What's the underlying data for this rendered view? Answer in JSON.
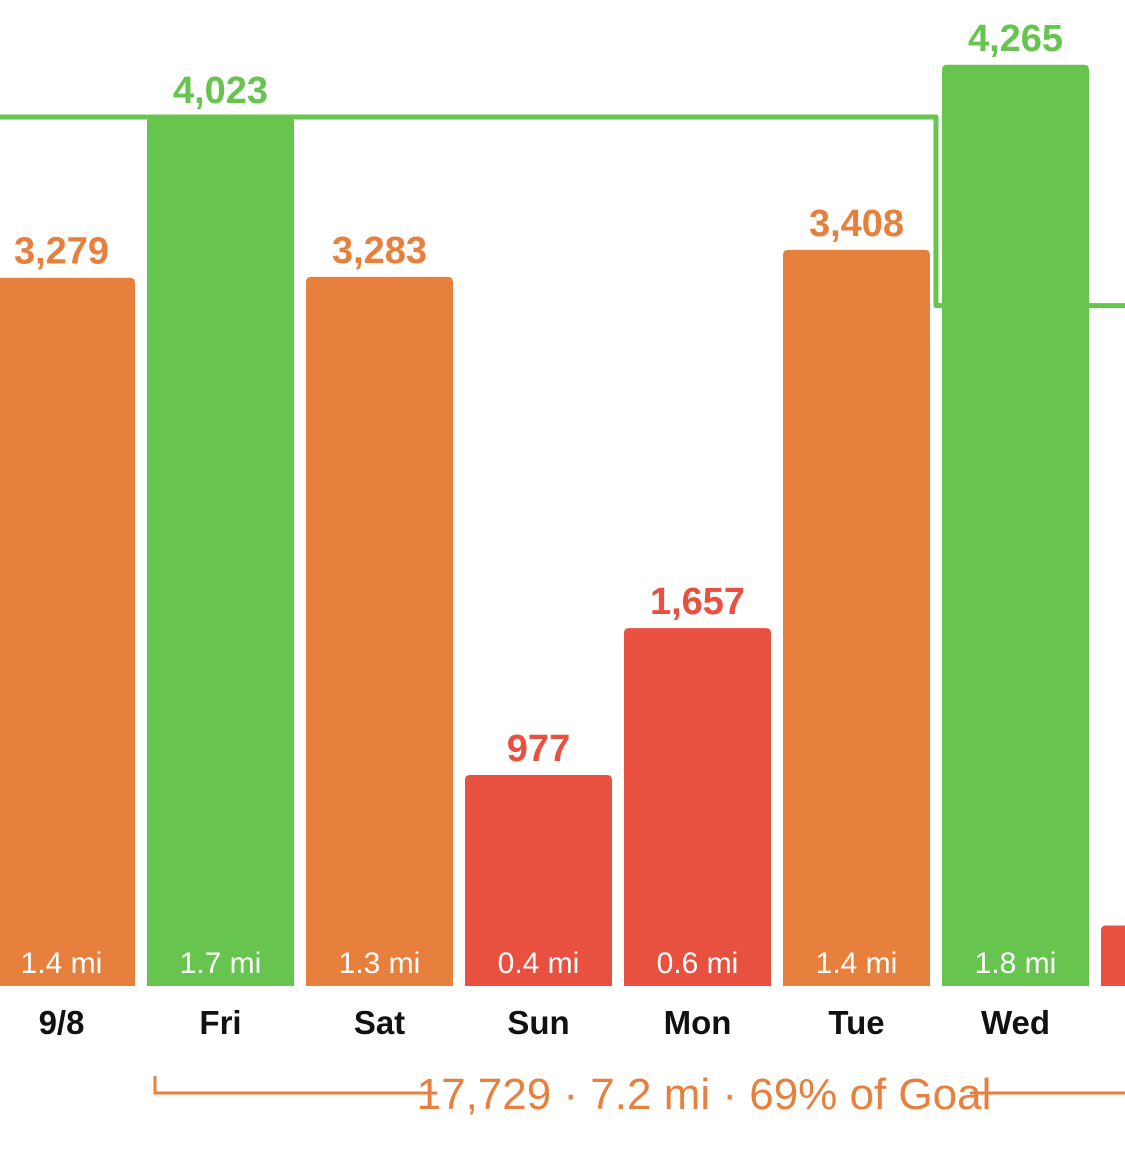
{
  "colors": {
    "goal_met": "#67C44F",
    "near_goal": "#E8803D",
    "below_goal": "#E85040",
    "goal_line": "#67C44F",
    "summary": "#E8803D",
    "axis_text": "#111111",
    "mile_text": "#ffffff"
  },
  "chart_data": {
    "type": "bar",
    "categories": [
      "9/8",
      "Fri",
      "Sat",
      "Sun",
      "Mon",
      "Tue",
      "Wed",
      ""
    ],
    "values": [
      3279,
      4023,
      3283,
      977,
      1657,
      3408,
      4265,
      null
    ],
    "value_labels": [
      "3,279",
      "4,023",
      "3,283",
      "977",
      "1,657",
      "3,408",
      "4,265",
      ""
    ],
    "mile_labels": [
      "1.4 mi",
      "1.7 mi",
      "1.3 mi",
      "0.4 mi",
      "0.6 mi",
      "1.4 mi",
      "1.8 mi",
      ""
    ],
    "status": [
      "near_goal",
      "goal_met",
      "near_goal",
      "below_goal",
      "below_goal",
      "near_goal",
      "goal_met",
      "below_goal"
    ],
    "goal_steps": [
      4023,
      4023,
      4023,
      4023,
      4023,
      4023,
      3150,
      3150
    ],
    "ylim": [
      0,
      4500
    ],
    "grid": false,
    "summary": "17,729 · 7.2 mi · 69% of Goal"
  }
}
